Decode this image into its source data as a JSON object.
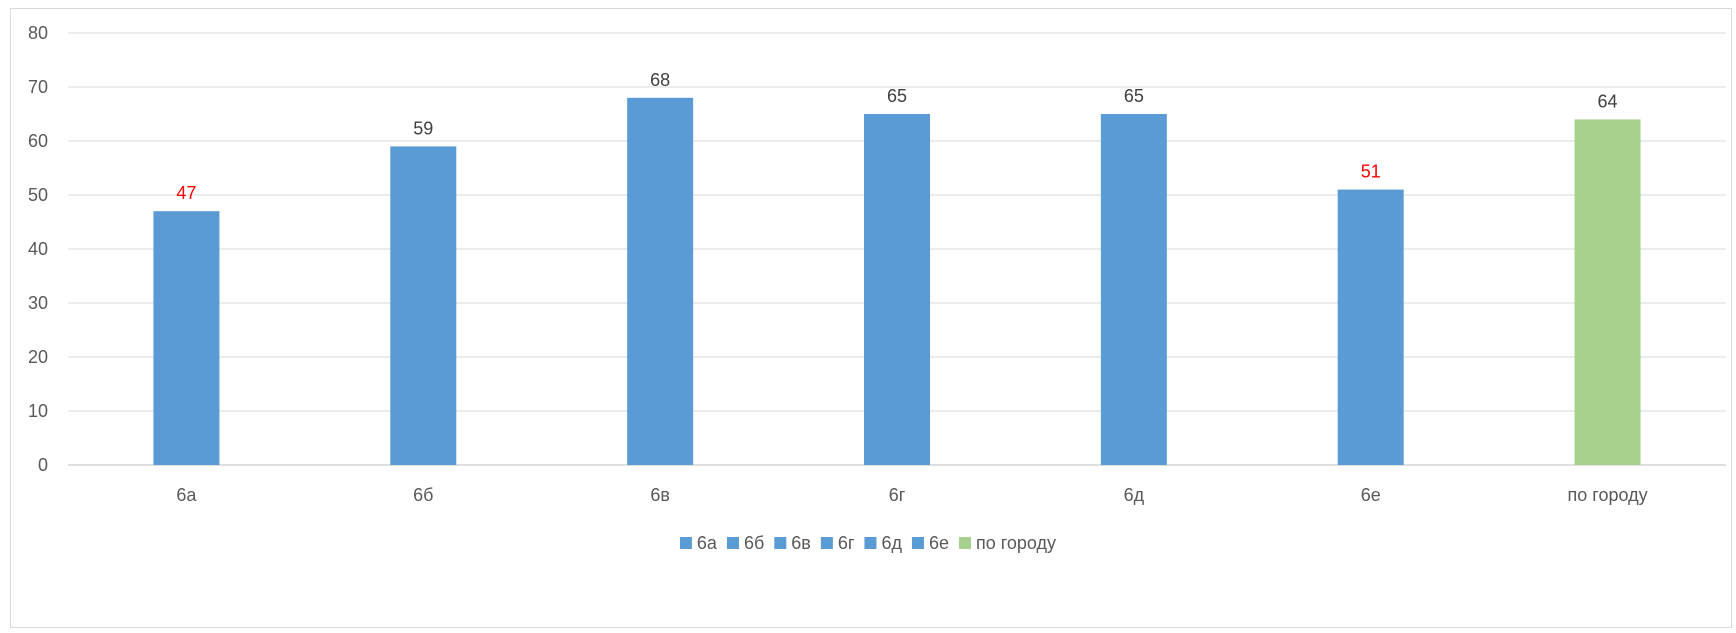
{
  "chart_data": {
    "type": "bar",
    "categories": [
      "6а",
      "6б",
      "6в",
      "6г",
      "6д",
      "6е",
      "по городу"
    ],
    "values": [
      47,
      59,
      68,
      65,
      65,
      51,
      64
    ],
    "series": [
      {
        "name": "6а",
        "value": 47,
        "color": "#5b9bd5",
        "label_color": "#ff0000"
      },
      {
        "name": "6б",
        "value": 59,
        "color": "#5b9bd5",
        "label_color": "#404040"
      },
      {
        "name": "6в",
        "value": 68,
        "color": "#5b9bd5",
        "label_color": "#404040"
      },
      {
        "name": "6г",
        "value": 65,
        "color": "#5b9bd5",
        "label_color": "#404040"
      },
      {
        "name": "6д",
        "value": 65,
        "color": "#5b9bd5",
        "label_color": "#404040"
      },
      {
        "name": "6е",
        "value": 51,
        "color": "#5b9bd5",
        "label_color": "#ff0000"
      },
      {
        "name": "по городу",
        "value": 64,
        "color": "#a9d18e",
        "label_color": "#404040"
      }
    ],
    "yticks": [
      "0",
      "10",
      "20",
      "30",
      "40",
      "50",
      "60",
      "70",
      "80"
    ],
    "ylim": [
      0,
      80
    ],
    "grid": true,
    "legend_position": "bottom"
  }
}
